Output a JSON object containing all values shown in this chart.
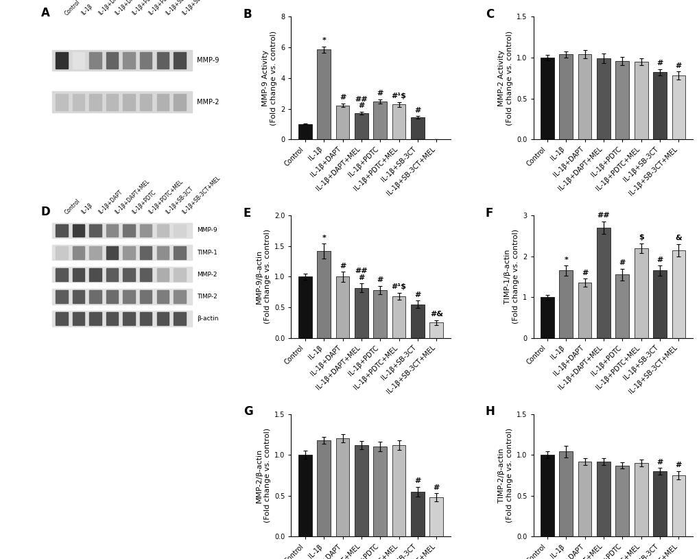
{
  "categories": [
    "Control",
    "IL-1β",
    "IL-1β+DAPT",
    "IL-1β+DAPT+MEL",
    "IL-1β+PDTC",
    "IL-1β+PDTC+MEL",
    "IL-1β+SB-3CT",
    "IL-1β+SB-3CT+MEL"
  ],
  "bar_colors": [
    "#111111",
    "#7f7f7f",
    "#aeaeae",
    "#555555",
    "#898989",
    "#c0c0c0",
    "#444444",
    "#d0d0d0"
  ],
  "panel_B": {
    "values": [
      1.0,
      5.85,
      2.22,
      1.72,
      2.48,
      2.28,
      1.42,
      0.0
    ],
    "errors": [
      0.05,
      0.22,
      0.12,
      0.1,
      0.14,
      0.15,
      0.09,
      0.0
    ],
    "ylabel": "MMP-9 Activity\n(Fold change vs. control)",
    "ylim": [
      0,
      8
    ],
    "yticks": [
      0,
      2,
      4,
      6,
      8
    ],
    "annotations": [
      {
        "bar": 1,
        "text": "*"
      },
      {
        "bar": 2,
        "text": "#"
      },
      {
        "bar": 3,
        "text": "##\n#"
      },
      {
        "bar": 4,
        "text": "#"
      },
      {
        "bar": 5,
        "text": "#¹$"
      },
      {
        "bar": 6,
        "text": "#"
      },
      {
        "bar": 7,
        "text": ""
      }
    ]
  },
  "panel_C": {
    "values": [
      1.0,
      1.04,
      1.04,
      0.99,
      0.96,
      0.95,
      0.82,
      0.78
    ],
    "errors": [
      0.03,
      0.04,
      0.05,
      0.06,
      0.05,
      0.04,
      0.04,
      0.05
    ],
    "ylabel": "MMP-2 Activity\n(Fold change vs. control)",
    "ylim": [
      0.0,
      1.5
    ],
    "yticks": [
      0.0,
      0.5,
      1.0,
      1.5
    ],
    "annotations": [
      {
        "bar": 6,
        "text": "#"
      },
      {
        "bar": 7,
        "text": "#"
      }
    ]
  },
  "panel_E": {
    "values": [
      1.0,
      1.42,
      1.0,
      0.82,
      0.78,
      0.68,
      0.55,
      0.25
    ],
    "errors": [
      0.05,
      0.12,
      0.08,
      0.07,
      0.07,
      0.06,
      0.06,
      0.04
    ],
    "ylabel": "MMP-9/β-actin\n(Fold change vs. control)",
    "ylim": [
      0.0,
      2.0
    ],
    "yticks": [
      0.0,
      0.5,
      1.0,
      1.5,
      2.0
    ],
    "annotations": [
      {
        "bar": 1,
        "text": "*"
      },
      {
        "bar": 2,
        "text": "#"
      },
      {
        "bar": 3,
        "text": "##\n#"
      },
      {
        "bar": 4,
        "text": "#"
      },
      {
        "bar": 5,
        "text": "#¹$"
      },
      {
        "bar": 6,
        "text": "#"
      },
      {
        "bar": 7,
        "text": "#&"
      }
    ]
  },
  "panel_F": {
    "values": [
      1.0,
      1.65,
      1.35,
      2.7,
      1.55,
      2.2,
      1.65,
      2.15
    ],
    "errors": [
      0.06,
      0.12,
      0.1,
      0.15,
      0.15,
      0.12,
      0.12,
      0.15
    ],
    "ylabel": "TIMP-1/β-actin\n(Fold change vs. control)",
    "ylim": [
      0.0,
      3.0
    ],
    "yticks": [
      0,
      1,
      2,
      3
    ],
    "annotations": [
      {
        "bar": 1,
        "text": "*"
      },
      {
        "bar": 2,
        "text": "#"
      },
      {
        "bar": 3,
        "text": "##"
      },
      {
        "bar": 4,
        "text": "#"
      },
      {
        "bar": 5,
        "text": "$"
      },
      {
        "bar": 6,
        "text": "#"
      },
      {
        "bar": 7,
        "text": "&"
      }
    ]
  },
  "panel_G": {
    "values": [
      1.0,
      1.18,
      1.2,
      1.12,
      1.1,
      1.12,
      0.55,
      0.48
    ],
    "errors": [
      0.05,
      0.04,
      0.05,
      0.05,
      0.06,
      0.06,
      0.06,
      0.05
    ],
    "ylabel": "MMP-2/β-actin\n(Fold change vs. control)",
    "ylim": [
      0.0,
      1.5
    ],
    "yticks": [
      0.0,
      0.5,
      1.0,
      1.5
    ],
    "annotations": [
      {
        "bar": 6,
        "text": "#"
      },
      {
        "bar": 7,
        "text": "#"
      }
    ]
  },
  "panel_H": {
    "values": [
      1.0,
      1.04,
      0.92,
      0.92,
      0.87,
      0.9,
      0.8,
      0.75
    ],
    "errors": [
      0.04,
      0.07,
      0.04,
      0.04,
      0.04,
      0.04,
      0.04,
      0.05
    ],
    "ylabel": "TIMP-2/β-actin\n(Fold change vs. control)",
    "ylim": [
      0.0,
      1.5
    ],
    "yticks": [
      0.0,
      0.5,
      1.0,
      1.5
    ],
    "annotations": [
      {
        "bar": 6,
        "text": "#"
      },
      {
        "bar": 7,
        "text": "#"
      }
    ]
  },
  "gel_labels": [
    "Control",
    "IL-1β",
    "IL-1β+DAPT",
    "IL-1β+DAPT+MEL",
    "IL-1β+PDTC",
    "IL-1β+PDTC+MEL",
    "IL-1β+SB-3CT",
    "IL-1β+SB-3CT+MEL"
  ],
  "panel_label_fontsize": 12,
  "annotation_fontsize": 8,
  "tick_fontsize": 7,
  "ylabel_fontsize": 8
}
